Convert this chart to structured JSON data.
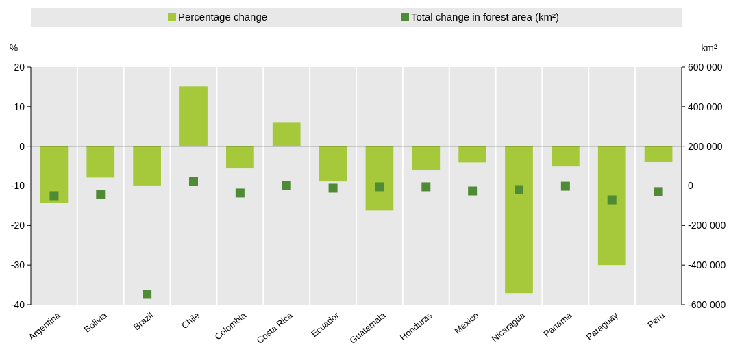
{
  "chart_data": {
    "type": "bar",
    "ylabel": "%",
    "y2label": "km²",
    "categories": [
      "Argentina",
      "Bolivia",
      "Brazil",
      "Chile",
      "Colombia",
      "Costa Rica",
      "Ecuador",
      "Guatemala",
      "Honduras",
      "Mexico",
      "Nicaragua",
      "Panama",
      "Paraguay",
      "Peru"
    ],
    "series": [
      {
        "name": "Percentage change",
        "color": "#a5c93a",
        "values": [
          -14.4,
          -7.9,
          -9.9,
          15.1,
          -5.6,
          6.1,
          -8.9,
          -16.2,
          -6.1,
          -4.1,
          -37.1,
          -5.1,
          -30.0,
          -3.9
        ]
      },
      {
        "name": "Total change in forest area (km²)",
        "type": "scatter",
        "axis": "y2",
        "color": "#4f8a34",
        "values": [
          -50000,
          -43000,
          -548000,
          22000,
          -36000,
          2000,
          -12000,
          -5000,
          -5000,
          -26000,
          -19000,
          -2000,
          -71000,
          -29000
        ]
      }
    ],
    "ylim": [
      -40,
      20
    ],
    "yticks": [
      -40,
      -30,
      -20,
      -10,
      0,
      10,
      20
    ],
    "y2lim": [
      -600000,
      600000
    ],
    "y2ticks": [
      {
        "value": -600000,
        "label": "-600 000"
      },
      {
        "value": -400000,
        "label": "-400 000"
      },
      {
        "value": -200000,
        "label": "-200 000"
      },
      {
        "value": 0,
        "label": "0"
      },
      {
        "value": 200000,
        "label": "200 000"
      },
      {
        "value": 400000,
        "label": "400 000"
      },
      {
        "value": 600000,
        "label": "600 000"
      }
    ],
    "ref_lines": [
      {
        "axis": "y",
        "value": 0,
        "color": "#000000"
      }
    ],
    "grid": "x",
    "legend": "top",
    "marker": "square"
  }
}
